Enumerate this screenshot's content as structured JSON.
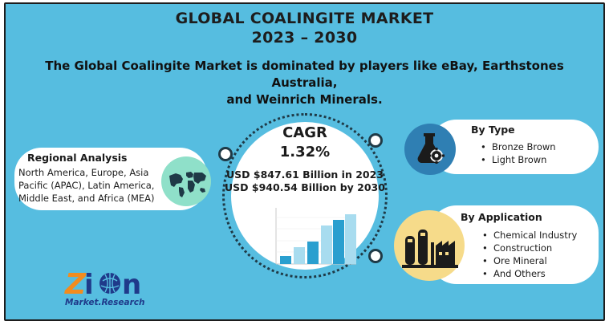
{
  "header": {
    "title_line1": "GLOBAL COALINGITE MARKET",
    "title_line2": "2023 – 2030",
    "subtitle_line1": "The Global Coalingite Market is dominated by players like eBay, Earthstones Australia,",
    "subtitle_line2": "and Weinrich Minerals."
  },
  "center": {
    "cagr_label": "CAGR",
    "cagr_value": "1.32%",
    "value_2023": "USD $847.61 Billion in 2023",
    "value_2030": "USD $940.54 Billion by 2030"
  },
  "regional": {
    "heading": "Regional Analysis",
    "lines": [
      "North America, Europe, Asia",
      "Pacific (APAC), Latin America,",
      "Middle East, and Africa (MEA)"
    ]
  },
  "by_type": {
    "heading": "By Type",
    "items": [
      "Bronze Brown",
      "Light Brown"
    ]
  },
  "by_application": {
    "heading": "By Application",
    "items": [
      "Chemical Industry",
      "Construction",
      "Ore Mineral",
      "And Others"
    ]
  },
  "logo": {
    "wordmark": "Zion",
    "tagline": "Market Research"
  },
  "colors": {
    "background": "#56bde0",
    "accent_dark_blue": "#1f3a8a",
    "accent_orange": "#f28c1e",
    "bar_light": "#a8dcef",
    "bar_dark": "#2a9fcf"
  },
  "icons": {
    "regional": "world-map-icon",
    "type": "flask-gear-icon",
    "application": "factory-icon"
  }
}
